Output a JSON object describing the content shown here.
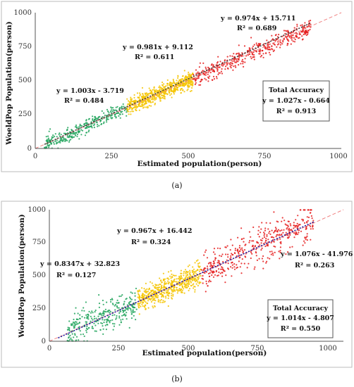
{
  "chart_data": [
    {
      "type": "scatter",
      "caption": "(a)",
      "xlabel": "Estimated population(person)",
      "ylabel": "WoeldPop Population(person)",
      "xlim": [
        0,
        1000
      ],
      "ylim": [
        0,
        1000
      ],
      "x_ticks": [
        "0",
        "250",
        "500",
        "750",
        "1000"
      ],
      "y_ticks": [
        "0",
        "250",
        "500",
        "750",
        "1000"
      ],
      "grid": false,
      "series": [
        {
          "color": "#1fa35a",
          "x_range": [
            30,
            300
          ],
          "slope": 1.003,
          "intercept": -3.719,
          "spread": 50
        },
        {
          "color": "#f5c400",
          "x_range": [
            300,
            515
          ],
          "slope": 0.981,
          "intercept": 9.112,
          "spread": 55
        },
        {
          "color": "#e51b1b",
          "x_range": [
            515,
            900
          ],
          "slope": 0.974,
          "intercept": 15.711,
          "spread": 55
        }
      ],
      "annotations": [
        {
          "line1": "y = 1.003x - 3.719",
          "line2": "R² = 0.484"
        },
        {
          "line1": "y = 0.981x + 9.112",
          "line2": "R² = 0.611"
        },
        {
          "line1": "y = 0.974x + 15.711",
          "line2": "R² = 0.689"
        }
      ],
      "accuracy_box": {
        "title": "Total Accuracy",
        "equation": "y = 1.027x - 0.664",
        "r2": "R² = 0.913"
      },
      "fit_line": {
        "slope": 1.027,
        "intercept": -0.664,
        "color": "#444444"
      },
      "identity_line": {
        "color": "#f08080"
      }
    },
    {
      "type": "scatter",
      "caption": "(b)",
      "xlabel": "Estimated population(person)",
      "ylabel": "WoeldPop Population(person)",
      "xlim": [
        0,
        1000
      ],
      "ylim": [
        0,
        1000
      ],
      "x_ticks": [
        "0",
        "250",
        "500",
        "750",
        "1000"
      ],
      "y_ticks": [
        "0",
        "250",
        "500",
        "750",
        "1000"
      ],
      "grid": false,
      "series": [
        {
          "color": "#1fa35a",
          "x_range": [
            60,
            300
          ],
          "slope": 0.8347,
          "intercept": 32.823,
          "spread": 110
        },
        {
          "color": "#f5c400",
          "x_range": [
            300,
            515
          ],
          "slope": 0.967,
          "intercept": 16.442,
          "spread": 85
        },
        {
          "color": "#e51b1b",
          "x_range": [
            515,
            900
          ],
          "slope": 1.076,
          "intercept": -41.976,
          "spread": 130
        }
      ],
      "annotations": [
        {
          "line1": "y = 0.8347x + 32.823",
          "line2": "R² = 0.127"
        },
        {
          "line1": "y = 0.967x + 16.442",
          "line2": "R² = 0.324"
        },
        {
          "line1": "y = 1.076x - 41.976",
          "line2": "R² = 0.263"
        }
      ],
      "accuracy_box": {
        "title": "Total Accuracy",
        "equation": "y = 1.014x - 4.807",
        "r2": "R² = 0.550"
      },
      "fit_line": {
        "slope": 1.014,
        "intercept": -4.807,
        "color": "#1a1aa0"
      },
      "identity_line": {
        "color": "#f08080"
      }
    }
  ]
}
